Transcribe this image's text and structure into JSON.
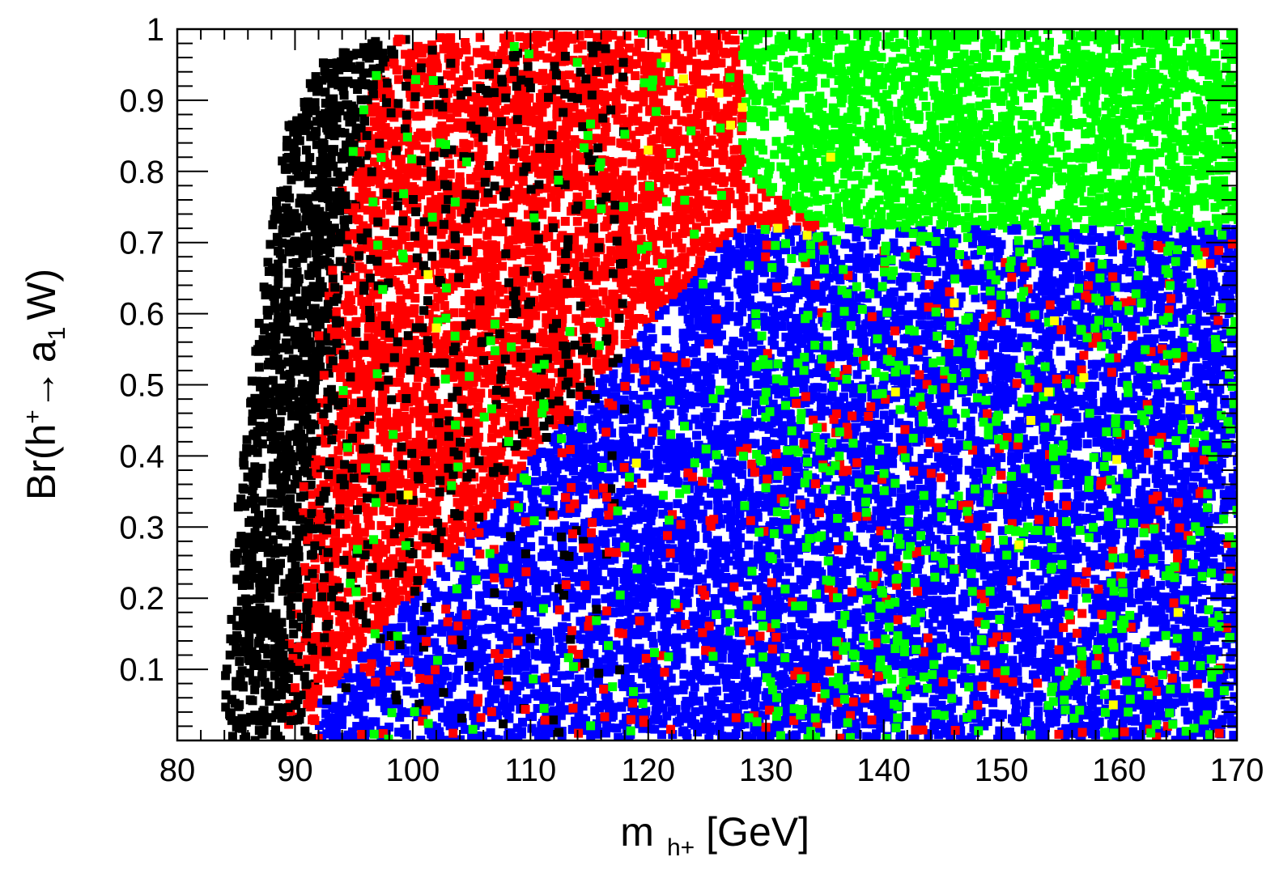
{
  "chart_data": {
    "type": "scatter",
    "title": "",
    "xlabel": {
      "main": "m",
      "sub": "h+",
      "unit": "[GeV]"
    },
    "ylabel": {
      "prefix": "Br(h",
      "sup": "+",
      "arrow": "→",
      "a": "a",
      "a_sub": "1",
      "suffix": "W)"
    },
    "xlim": [
      80,
      170
    ],
    "ylim": [
      0,
      1
    ],
    "x_ticks": [
      80,
      90,
      100,
      110,
      120,
      130,
      140,
      150,
      160,
      170
    ],
    "x_tick_labels": [
      "80",
      "90",
      "100",
      "110",
      "120",
      "130",
      "140",
      "150",
      "160",
      "170"
    ],
    "y_ticks": [
      0.1,
      0.2,
      0.3,
      0.4,
      0.5,
      0.6,
      0.7,
      0.8,
      0.9,
      1.0
    ],
    "y_tick_labels": [
      "0.1",
      "0.2",
      "0.3",
      "0.4",
      "0.5",
      "0.6",
      "0.7",
      "0.8",
      "0.9",
      "1"
    ],
    "grid": false,
    "legend": "none",
    "series": [
      {
        "name": "black",
        "color": "#000000",
        "description": "densely scanned points filling leftmost band from about 84.5 to 105 GeV, up to Br near 1",
        "region": {
          "x_min": 84.5,
          "x_max": 106,
          "y_min": 0.0,
          "y_max": 0.99
        }
      },
      {
        "name": "red",
        "color": "#ff0000",
        "description": "dense points from about 88 to 140 GeV, upper region Br above about 0.5 at high mass",
        "region": {
          "x_min": 88,
          "x_max": 140,
          "y_min": 0.0,
          "y_max": 1.0
        }
      },
      {
        "name": "blue",
        "color": "#0000ff",
        "description": "dense lower-right region, m above ~92 GeV, Br below about 0.7",
        "region": {
          "x_min": 92,
          "x_max": 170,
          "y_min": 0.0,
          "y_max": 0.72
        }
      },
      {
        "name": "green",
        "color": "#00ff00",
        "description": "dense upper-right region (m > 130 GeV, Br > 0.7) plus scattered points throughout",
        "region": {
          "x_min": 93,
          "x_max": 170,
          "y_min": 0.0,
          "y_max": 1.0
        }
      },
      {
        "name": "yellow",
        "color": "#ffff00",
        "description": "sparse scattered points",
        "points": [
          [
            99.6,
            0.345
          ],
          [
            101.3,
            0.655
          ],
          [
            102,
            0.58
          ],
          [
            119,
            0.39
          ],
          [
            120,
            0.83
          ],
          [
            121.5,
            0.96
          ],
          [
            123,
            0.93
          ],
          [
            124.5,
            0.91
          ],
          [
            126,
            0.91
          ],
          [
            127,
            0.865
          ],
          [
            128,
            0.89
          ],
          [
            131,
            0.72
          ],
          [
            133.5,
            0.71
          ],
          [
            135.5,
            0.82
          ],
          [
            141,
            0.49
          ],
          [
            146,
            0.615
          ],
          [
            151.5,
            0.275
          ],
          [
            152.5,
            0.45
          ],
          [
            154,
            0.49
          ],
          [
            154.5,
            0.59
          ],
          [
            157,
            0.51
          ],
          [
            159.5,
            0.05
          ],
          [
            159.8,
            0.395
          ],
          [
            165,
            0.18
          ],
          [
            166,
            0.465
          ],
          [
            167,
            0.67
          ]
        ]
      }
    ]
  }
}
